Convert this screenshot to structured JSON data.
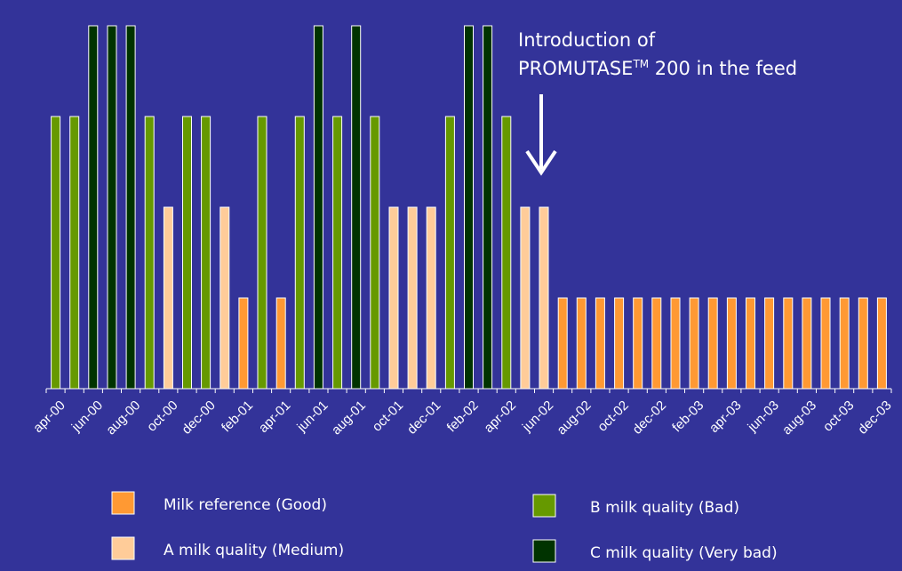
{
  "chart_data": {
    "type": "bar",
    "categories": [
      "apr-00",
      "may-00",
      "jun-00",
      "jul-00",
      "aug-00",
      "sep-00",
      "oct-00",
      "nov-00",
      "dec-00",
      "jan-01",
      "feb-01",
      "mar-01",
      "apr-01",
      "may-01",
      "jun-01",
      "jul-01",
      "aug-01",
      "sep-01",
      "oct-01",
      "nov-01",
      "dec-01",
      "jan-02",
      "feb-02",
      "mar-02",
      "apr-02",
      "may-02",
      "jun-02",
      "jul-02",
      "aug-02",
      "sep-02",
      "oct-02",
      "nov-02",
      "dec-02",
      "jan-03",
      "feb-03",
      "mar-03",
      "apr-03",
      "may-03",
      "jun-03",
      "jul-03",
      "aug-03",
      "sep-03",
      "oct-03",
      "nov-03",
      "dec-03"
    ],
    "tick_labels": [
      "apr-00",
      "jun-00",
      "aug-00",
      "oct-00",
      "dec-00",
      "feb-01",
      "apr-01",
      "jun-01",
      "aug-01",
      "oct-01",
      "dec-01",
      "feb-02",
      "apr-02",
      "jun-02",
      "aug-02",
      "oct-02",
      "dec-02",
      "feb-03",
      "apr-03",
      "jun-03",
      "aug-03",
      "oct-03",
      "dec-03"
    ],
    "values": [
      3,
      3,
      4,
      4,
      4,
      3,
      2,
      3,
      3,
      2,
      1,
      3,
      1,
      3,
      4,
      3,
      4,
      3,
      2,
      2,
      2,
      3,
      4,
      4,
      3,
      2,
      2,
      1,
      1,
      1,
      1,
      1,
      1,
      1,
      1,
      1,
      1,
      1,
      1,
      1,
      1,
      1,
      1,
      1,
      1
    ],
    "quality_class": [
      "B",
      "B",
      "C",
      "C",
      "C",
      "B",
      "A",
      "B",
      "B",
      "A",
      "R",
      "B",
      "R",
      "B",
      "C",
      "B",
      "C",
      "B",
      "A",
      "A",
      "A",
      "B",
      "C",
      "C",
      "B",
      "A",
      "A",
      "R",
      "R",
      "R",
      "R",
      "R",
      "R",
      "R",
      "R",
      "R",
      "R",
      "R",
      "R",
      "R",
      "R",
      "R",
      "R",
      "R",
      "R"
    ],
    "ylim": [
      0,
      4
    ],
    "grid": false,
    "legend": {
      "placement": "bottom",
      "items": [
        {
          "key": "R",
          "label": "Milk reference (Good)",
          "color": "#ff9933"
        },
        {
          "key": "B",
          "label": "B milk quality (Bad)",
          "color": "#669900"
        },
        {
          "key": "A",
          "label": "A milk quality (Medium)",
          "color": "#ffcc99"
        },
        {
          "key": "C",
          "label": "C milk quality (Very bad)",
          "color": "#003300"
        }
      ]
    },
    "annotation": {
      "line1": "Introduction of",
      "line2_main": "PROMUTASE",
      "line2_sup": "TM",
      "line2_rest": " 200 in the feed",
      "points_to": "jun-02"
    }
  }
}
